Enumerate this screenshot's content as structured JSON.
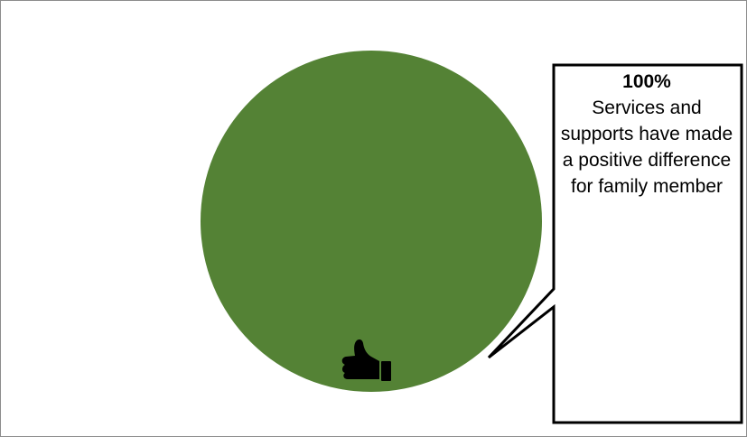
{
  "chart_data": {
    "type": "pie",
    "slices": [
      {
        "label": "Services and supports have made a positive difference for family member",
        "value": 100,
        "color": "#548235"
      }
    ]
  },
  "callout": {
    "value_text": "100%",
    "label_text": "Services and supports have made a positive difference for family member"
  },
  "icon": {
    "name": "thumbs-up-icon"
  }
}
